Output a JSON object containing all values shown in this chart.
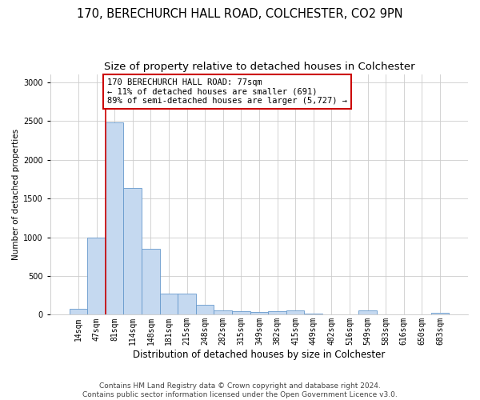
{
  "title": "170, BERECHURCH HALL ROAD, COLCHESTER, CO2 9PN",
  "subtitle": "Size of property relative to detached houses in Colchester",
  "xlabel": "Distribution of detached houses by size in Colchester",
  "ylabel": "Number of detached properties",
  "bin_labels": [
    "14sqm",
    "47sqm",
    "81sqm",
    "114sqm",
    "148sqm",
    "181sqm",
    "215sqm",
    "248sqm",
    "282sqm",
    "315sqm",
    "349sqm",
    "382sqm",
    "415sqm",
    "449sqm",
    "482sqm",
    "516sqm",
    "549sqm",
    "583sqm",
    "616sqm",
    "650sqm",
    "683sqm"
  ],
  "bar_values": [
    75,
    1000,
    2480,
    1640,
    850,
    270,
    270,
    130,
    55,
    45,
    40,
    45,
    55,
    10,
    5,
    5,
    55,
    5,
    5,
    5,
    20
  ],
  "bar_color": "#c5d9f0",
  "bar_edge_color": "#6699cc",
  "vline_color": "#cc0000",
  "annotation_text": "170 BERECHURCH HALL ROAD: 77sqm\n← 11% of detached houses are smaller (691)\n89% of semi-detached houses are larger (5,727) →",
  "annotation_box_color": "#ffffff",
  "annotation_border_color": "#cc0000",
  "footer_line1": "Contains HM Land Registry data © Crown copyright and database right 2024.",
  "footer_line2": "Contains public sector information licensed under the Open Government Licence v3.0.",
  "background_color": "#ffffff",
  "grid_color": "#cccccc",
  "ylim": [
    0,
    3100
  ],
  "yticks": [
    0,
    500,
    1000,
    1500,
    2000,
    2500,
    3000
  ],
  "title_fontsize": 10.5,
  "subtitle_fontsize": 9.5,
  "xlabel_fontsize": 8.5,
  "ylabel_fontsize": 7.5,
  "tick_fontsize": 7,
  "footer_fontsize": 6.5
}
